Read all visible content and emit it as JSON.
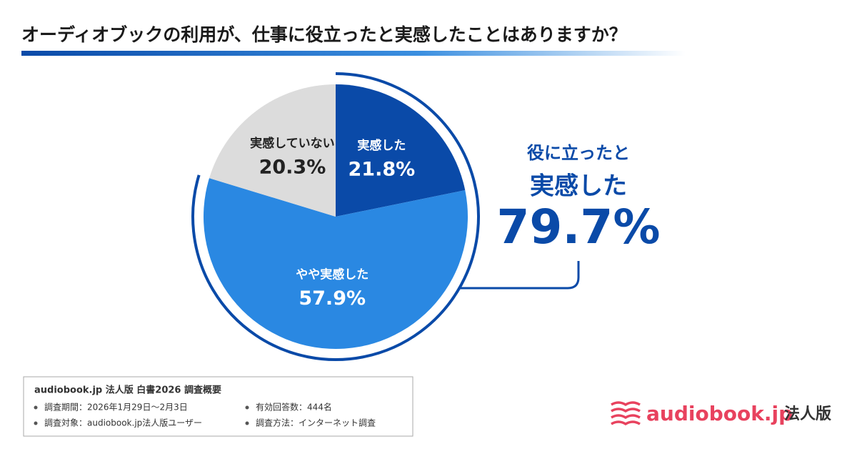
{
  "chart_data": {
    "type": "pie",
    "title": "オーディオブックの利用が、仕事に役立ったと実感したことはありますか？",
    "categories": [
      "実感した",
      "やや実感した",
      "実感していない"
    ],
    "values": [
      21.8,
      57.9,
      20.3
    ],
    "value_labels": [
      "21.8%",
      "57.9%",
      "20.3%"
    ],
    "colors": [
      "#0a4aa8",
      "#2a88e2",
      "#dcdcdc"
    ],
    "callout": {
      "lines": [
        "役に立ったと",
        "実感した"
      ],
      "value": 79.7,
      "value_label": "79.7%"
    }
  },
  "survey": {
    "heading": "audiobook.jp 法人版 白書2026 調査概要",
    "items": [
      "調査期間：2026年1月29日〜2月3日",
      "有効回答数：444名",
      "調査対象：audiobook.jp法人版ユーザー",
      "調査方法：インターネット調査"
    ]
  },
  "logo": {
    "name": "audiobook.jp",
    "suffix": "法人版"
  }
}
